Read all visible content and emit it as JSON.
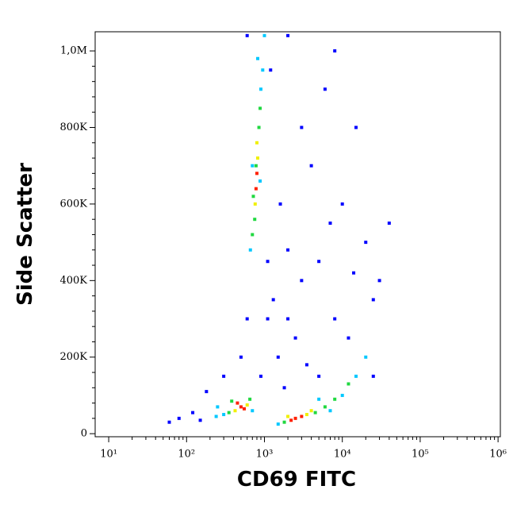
{
  "chart_data": {
    "type": "scatter",
    "x_label": "CD69 FITC",
    "y_label": "Side Scatter",
    "xscale": "log",
    "xlim": [
      6.7,
      1070000
    ],
    "ylim": [
      -8000,
      1050000
    ],
    "xticks": [
      {
        "value": 10,
        "label": "10¹"
      },
      {
        "value": 100,
        "label": "10²"
      },
      {
        "value": 1000,
        "label": "10³"
      },
      {
        "value": 10000,
        "label": "10⁴"
      },
      {
        "value": 100000,
        "label": "10⁵"
      },
      {
        "value": 1000000,
        "label": "10⁶"
      }
    ],
    "yticks": [
      0,
      {
        "value": 200000,
        "label": "200K"
      },
      {
        "value": 400000,
        "label": "400K"
      },
      {
        "value": 600000,
        "label": "600K"
      },
      {
        "value": 800000,
        "label": "800K"
      },
      {
        "value": 1000000,
        "label": "1,0M"
      }
    ],
    "series": [
      {
        "color": "#0000ff",
        "x": [
          60,
          80,
          120,
          180,
          150,
          1100,
          1300,
          2000,
          3000,
          1500,
          2500,
          5000,
          8000,
          4000,
          10000,
          20000,
          1600,
          3000,
          1200,
          8000,
          25000,
          30000,
          600,
          1100,
          2000,
          5000,
          15000,
          40000,
          900,
          1800,
          3500,
          12000,
          25000,
          600,
          2000,
          6000,
          500,
          300,
          7000,
          14000
        ],
        "values": [
          30000,
          40000,
          55000,
          110000,
          35000,
          300000,
          350000,
          300000,
          400000,
          200000,
          250000,
          150000,
          300000,
          700000,
          600000,
          500000,
          600000,
          800000,
          950000,
          1000000,
          350000,
          400000,
          300000,
          450000,
          480000,
          450000,
          800000,
          550000,
          150000,
          120000,
          180000,
          250000,
          150000,
          1040000,
          1040000,
          900000,
          200000,
          150000,
          550000,
          420000
        ]
      },
      {
        "color": "#00c8ff",
        "x": [
          300,
          700,
          250,
          1500,
          7000,
          10000,
          15000,
          20000,
          660,
          900,
          950,
          700,
          880,
          1000,
          820,
          240,
          5000
        ],
        "values": [
          50000,
          60000,
          70000,
          25000,
          60000,
          100000,
          150000,
          200000,
          480000,
          900000,
          950000,
          700000,
          660000,
          1040000,
          980000,
          45000,
          90000
        ]
      },
      {
        "color": "#20d840",
        "x": [
          350,
          650,
          380,
          4500,
          1800,
          6000,
          8000,
          750,
          850,
          780,
          720,
          880,
          12000,
          700
        ],
        "values": [
          55000,
          90000,
          85000,
          55000,
          30000,
          70000,
          90000,
          560000,
          800000,
          700000,
          620000,
          850000,
          130000,
          520000
        ]
      },
      {
        "color": "#f0f000",
        "x": [
          420,
          600,
          3500,
          2000,
          820,
          760,
          800,
          4000
        ],
        "values": [
          60000,
          75000,
          50000,
          45000,
          720000,
          600000,
          760000,
          60000
        ]
      },
      {
        "color": "#ff2000",
        "x": [
          500,
          450,
          550,
          2500,
          3000,
          2200,
          800,
          780
        ],
        "values": [
          70000,
          80000,
          65000,
          40000,
          45000,
          35000,
          680000,
          640000
        ]
      }
    ]
  }
}
